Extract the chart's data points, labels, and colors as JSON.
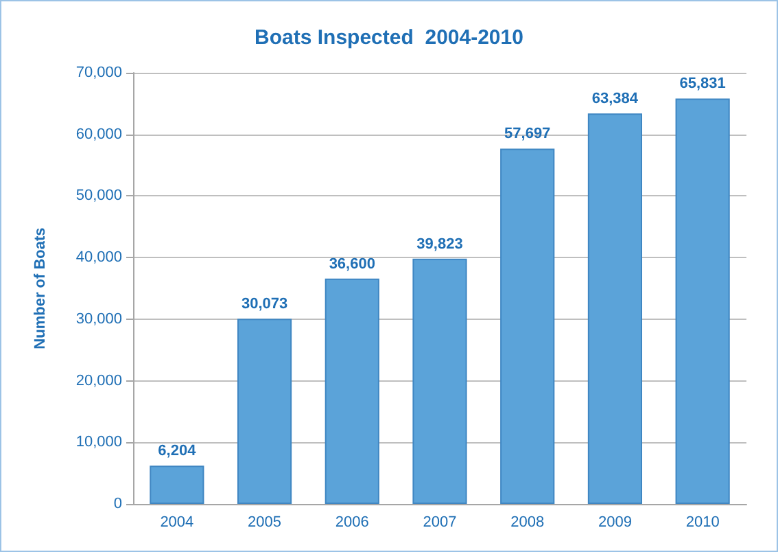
{
  "chart_data": {
    "type": "bar",
    "title": "Boats Inspected  2004-2010",
    "ylabel": "Number of Boats",
    "categories": [
      "2004",
      "2005",
      "2006",
      "2007",
      "2008",
      "2009",
      "2010"
    ],
    "values": [
      6204,
      30073,
      36600,
      39823,
      57697,
      63384,
      65831
    ],
    "value_labels": [
      "6,204",
      "30,073",
      "36,600",
      "39,823",
      "57,697",
      "63,384",
      "65,831"
    ],
    "color": "#5ba3d9",
    "ylim": [
      0,
      70000
    ],
    "yticks": [
      {
        "value": 0,
        "label": "0"
      },
      {
        "value": 10000,
        "label": "10,000"
      },
      {
        "value": 20000,
        "label": "20,000"
      },
      {
        "value": 30000,
        "label": "30,000"
      },
      {
        "value": 40000,
        "label": "40,000"
      },
      {
        "value": 50000,
        "label": "50,000"
      },
      {
        "value": 60000,
        "label": "60,000"
      },
      {
        "value": 70000,
        "label": "70,000"
      }
    ],
    "grid": "y"
  }
}
